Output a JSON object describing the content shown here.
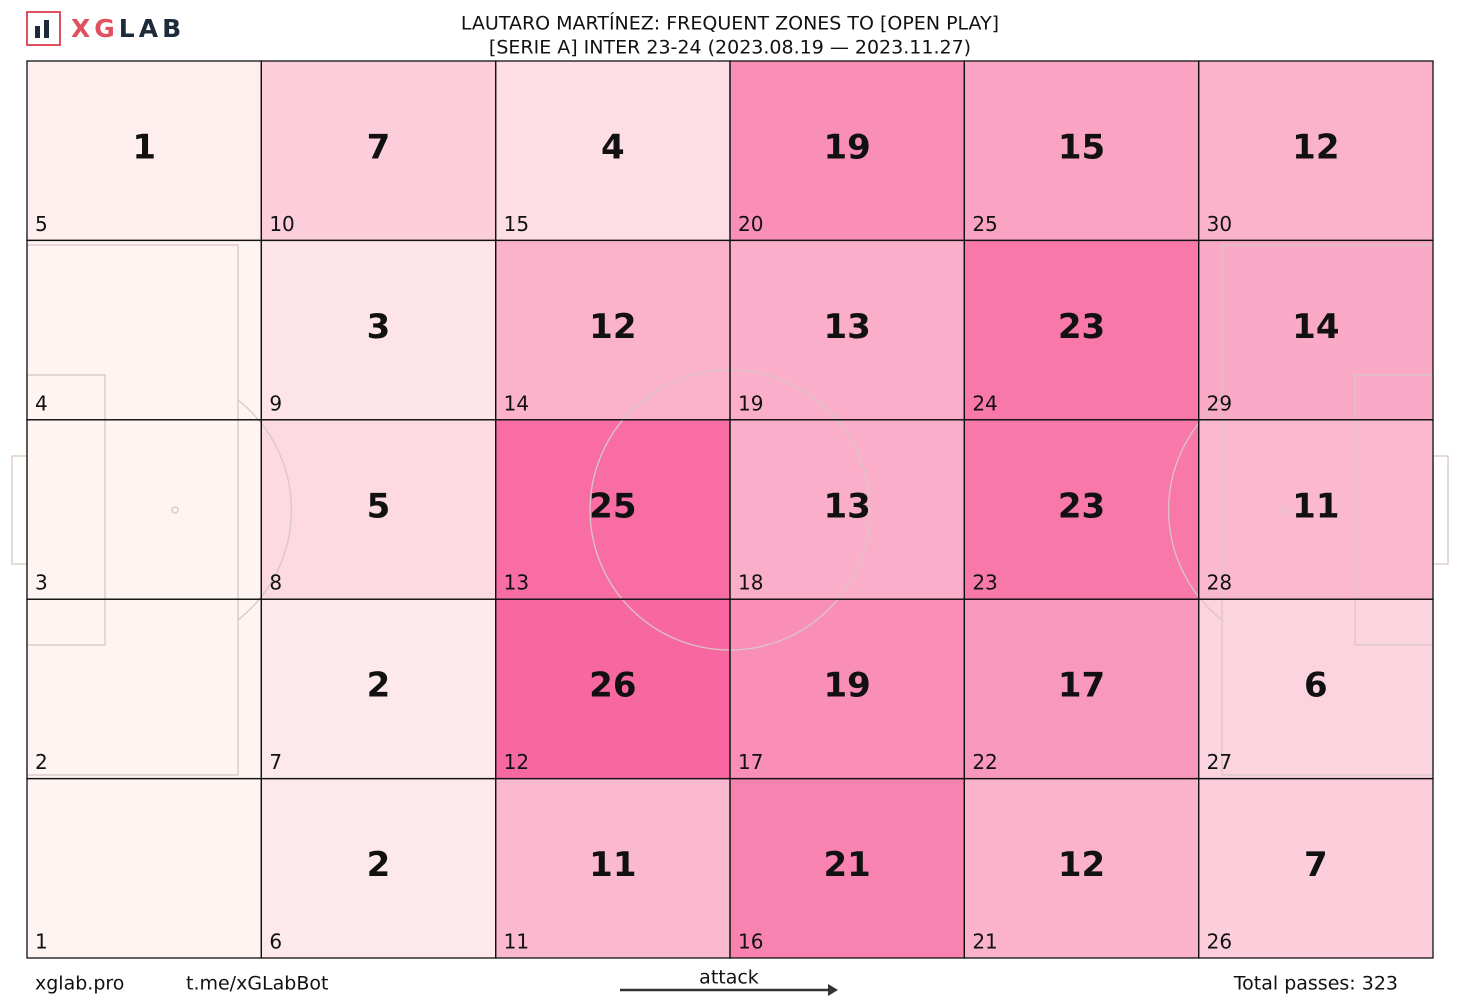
{
  "logo": {
    "accent": "XG",
    "rest": "LAB"
  },
  "chart_data": {
    "type": "heatmap",
    "title": "LAUTARO MARTÍNEZ: FREQUENT ZONES TO [OPEN PLAY]",
    "subtitle": "[SERIE A] INTER 23-24 (2023.08.19 — 2023.11.27)",
    "columns": 6,
    "rows": 5,
    "colormap": [
      "#fef4f1",
      "#f768a1"
    ],
    "zones": [
      {
        "id": 1,
        "value": null
      },
      {
        "id": 2,
        "value": null
      },
      {
        "id": 3,
        "value": null
      },
      {
        "id": 4,
        "value": null
      },
      {
        "id": 5,
        "value": 1
      },
      {
        "id": 6,
        "value": 2
      },
      {
        "id": 7,
        "value": 2
      },
      {
        "id": 8,
        "value": 5
      },
      {
        "id": 9,
        "value": 3
      },
      {
        "id": 10,
        "value": 7
      },
      {
        "id": 11,
        "value": 11
      },
      {
        "id": 12,
        "value": 26
      },
      {
        "id": 13,
        "value": 25
      },
      {
        "id": 14,
        "value": 12
      },
      {
        "id": 15,
        "value": 4
      },
      {
        "id": 16,
        "value": 21
      },
      {
        "id": 17,
        "value": 19
      },
      {
        "id": 18,
        "value": 13
      },
      {
        "id": 19,
        "value": 13
      },
      {
        "id": 20,
        "value": 19
      },
      {
        "id": 21,
        "value": 12
      },
      {
        "id": 22,
        "value": 17
      },
      {
        "id": 23,
        "value": 23
      },
      {
        "id": 24,
        "value": 23
      },
      {
        "id": 25,
        "value": 15
      },
      {
        "id": 26,
        "value": 7
      },
      {
        "id": 27,
        "value": 6
      },
      {
        "id": 28,
        "value": 11
      },
      {
        "id": 29,
        "value": 14
      },
      {
        "id": 30,
        "value": 12
      }
    ]
  },
  "footer": {
    "site": "xglab.pro",
    "bot": "t.me/xGLabBot",
    "direction": "attack",
    "total": "Total passes: 323"
  }
}
